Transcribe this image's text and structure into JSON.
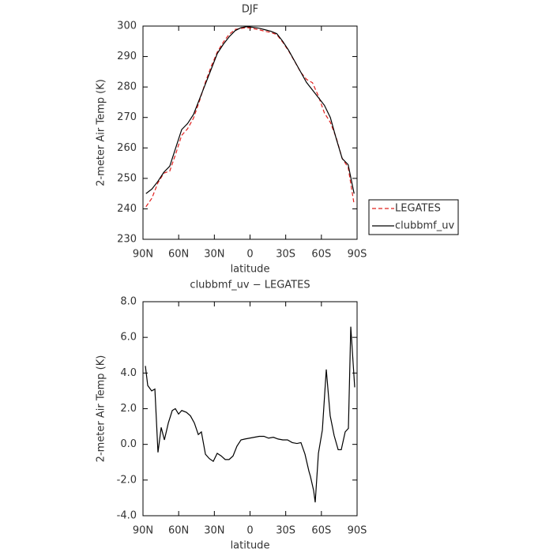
{
  "chart_data": [
    {
      "type": "line",
      "title": "DJF",
      "x_label": "latitude",
      "y_label": "2-meter Air Temp (K)",
      "x": [
        87.5,
        82.5,
        77.5,
        72.5,
        67.5,
        62.5,
        57.5,
        52.5,
        47.5,
        42.5,
        37.5,
        32.5,
        27.5,
        22.5,
        17.5,
        12.5,
        7.5,
        2.5,
        -2.5,
        -7.5,
        -12.5,
        -17.5,
        -22.5,
        -27.5,
        -32.5,
        -37.5,
        -42.5,
        -47.5,
        -52.5,
        -57.5,
        -62.5,
        -67.5,
        -72.5,
        -77.5,
        -82.5,
        -87.5
      ],
      "series": [
        {
          "name": "LEGATES",
          "color": "#e0201e",
          "dash": true,
          "values": [
            240.7,
            243.5,
            248.5,
            251.7,
            252.4,
            258,
            264.1,
            266.3,
            269.8,
            275.4,
            281.6,
            286.9,
            291.5,
            294.7,
            297.3,
            298.9,
            299.2,
            299.5,
            299.2,
            298.8,
            298.3,
            297.9,
            297.2,
            294.7,
            291.8,
            288.4,
            284.9,
            282.5,
            281.4,
            277,
            271.5,
            268.4,
            263.3,
            256.5,
            253.6,
            241.5
          ]
        },
        {
          "name": "clubbmf_uv",
          "color": "#000000",
          "dash": false,
          "values": [
            245,
            246.5,
            249,
            252,
            254,
            260,
            266,
            268,
            271,
            276,
            281,
            286,
            291,
            294,
            296.5,
            298.5,
            299.5,
            299.8,
            299.6,
            299.3,
            298.8,
            298.3,
            297.5,
            295,
            292,
            288.5,
            285,
            281.5,
            279,
            276.5,
            274,
            270,
            263,
            256.5,
            254.5,
            245
          ]
        }
      ],
      "xlim": [
        90,
        -90
      ],
      "xticks": [
        {
          "value": 90,
          "label": "90N"
        },
        {
          "value": 60,
          "label": "60N"
        },
        {
          "value": 30,
          "label": "30N"
        },
        0,
        {
          "value": -30,
          "label": "30S"
        },
        {
          "value": -60,
          "label": "60S"
        },
        {
          "value": -90,
          "label": "90S"
        }
      ],
      "ylim": [
        230,
        300
      ],
      "yticks": [
        230,
        240,
        250,
        260,
        270,
        280,
        290,
        300
      ],
      "legend": "right"
    },
    {
      "type": "line",
      "title": "clubbmf_uv − LEGATES",
      "x_label": "latitude",
      "y_label": "2-meter Air Temp (K)",
      "x": [
        88,
        86,
        82.7,
        80,
        77.4,
        74.7,
        72,
        68.7,
        65.4,
        62.8,
        60.1,
        57.4,
        53.5,
        50.1,
        46.8,
        43.5,
        40.9,
        37.5,
        34.2,
        30.9,
        27.6,
        24.2,
        20.9,
        17.6,
        14.3,
        11,
        7.6,
        4.3,
        0.3,
        -3.7,
        -7.7,
        -11.7,
        -15.6,
        -19.6,
        -23.6,
        -27.6,
        -31.5,
        -35.5,
        -39.5,
        -42.8,
        -46.2,
        -49.5,
        -50.8,
        -53.5,
        -54.8,
        -57.5,
        -60.8,
        -64.1,
        -67.4,
        -70.7,
        -74.1,
        -76.7,
        -80,
        -82.7,
        -84.7,
        -88
      ],
      "series": [
        {
          "color": "#000000",
          "dash": false,
          "values": [
            4.4,
            3.3,
            3.0,
            3.1,
            -0.45,
            0.95,
            0.25,
            1.2,
            1.9,
            2.0,
            1.7,
            1.9,
            1.8,
            1.6,
            1.2,
            0.55,
            0.7,
            -0.55,
            -0.8,
            -0.95,
            -0.5,
            -0.65,
            -0.85,
            -0.85,
            -0.65,
            -0.1,
            0.25,
            0.3,
            0.35,
            0.4,
            0.45,
            0.45,
            0.35,
            0.4,
            0.3,
            0.25,
            0.25,
            0.1,
            0.05,
            0.1,
            -0.55,
            -1.5,
            -1.8,
            -2.6,
            -3.25,
            -0.5,
            0.8,
            4.2,
            1.6,
            0.5,
            -0.3,
            -0.3,
            0.7,
            0.9,
            6.6,
            3.2
          ]
        }
      ],
      "xlim": [
        90,
        -90
      ],
      "xticks": [
        {
          "value": 90,
          "label": "90N"
        },
        {
          "value": 60,
          "label": "60N"
        },
        {
          "value": 30,
          "label": "30N"
        },
        0,
        {
          "value": -30,
          "label": "30S"
        },
        {
          "value": -60,
          "label": "60S"
        },
        {
          "value": -90,
          "label": "90S"
        }
      ],
      "ylim": [
        -4,
        8
      ],
      "yticks": [
        {
          "value": -4,
          "label": "-4.0"
        },
        {
          "value": -2,
          "label": "-2.0"
        },
        {
          "value": 0,
          "label": "0.0"
        },
        {
          "value": 2,
          "label": "2.0"
        },
        {
          "value": 4,
          "label": "4.0"
        },
        {
          "value": 6,
          "label": "6.0"
        },
        {
          "value": 8,
          "label": "8.0"
        }
      ]
    }
  ]
}
